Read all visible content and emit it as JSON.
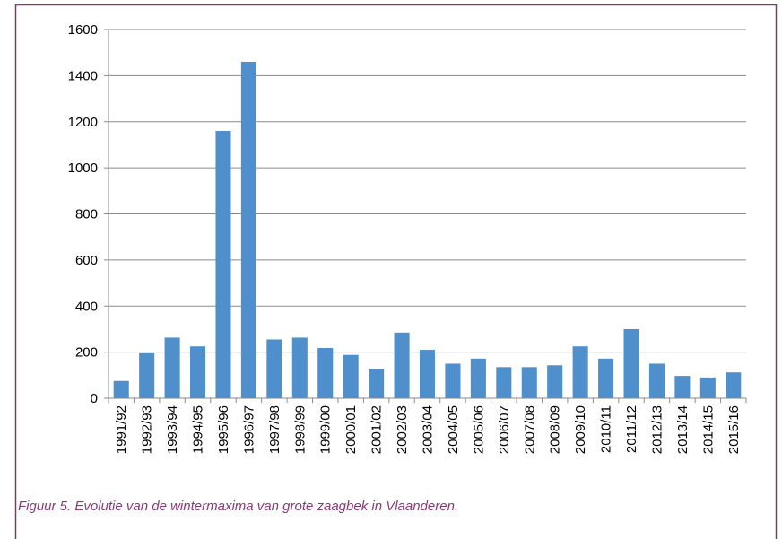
{
  "chart_data": {
    "type": "bar",
    "categories": [
      "1991/92",
      "1992/93",
      "1993/94",
      "1994/95",
      "1995/96",
      "1996/97",
      "1997/98",
      "1998/99",
      "1999/00",
      "2000/01",
      "2001/02",
      "2002/03",
      "2003/04",
      "2004/05",
      "2005/06",
      "2006/07",
      "2007/08",
      "2008/09",
      "2009/10",
      "2010/11",
      "2011/12",
      "2012/13",
      "2013/14",
      "2014/15",
      "2015/16"
    ],
    "values": [
      75,
      195,
      263,
      225,
      1160,
      1460,
      255,
      263,
      218,
      188,
      127,
      285,
      210,
      150,
      172,
      135,
      135,
      143,
      225,
      172,
      300,
      150,
      97,
      90,
      112
    ],
    "color": "#4f8fcc",
    "ylim": [
      0,
      1600
    ],
    "yticks": [
      0,
      200,
      400,
      600,
      800,
      1000,
      1200,
      1400,
      1600
    ],
    "grid": true,
    "caption": "Figuur 5. Evolutie van de wintermaxima van grote zaagbek in Vlaanderen."
  }
}
